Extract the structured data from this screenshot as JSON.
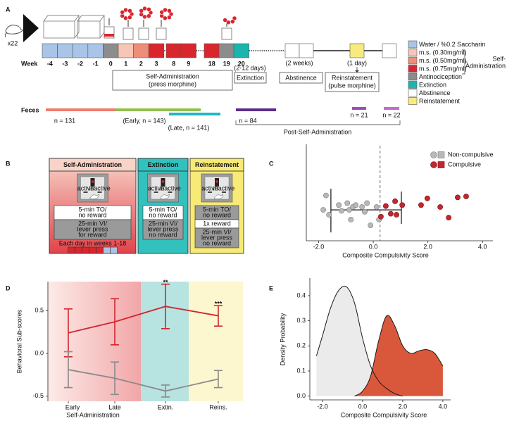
{
  "panel_a": {
    "label": "A",
    "subjects": "x22",
    "week_label": "Week",
    "legend": [
      {
        "label": "Water / %0.2 Saccharin",
        "color": "#a9c4e6"
      },
      {
        "label": "m.s. (0.30mg/ml)",
        "color": "#f6c6b6"
      },
      {
        "label": "m.s. (0.50mg/ml)",
        "color": "#ee8d7a"
      },
      {
        "label": "m.s. (0.75mg/ml)",
        "color": "#d9262e"
      },
      {
        "label": "Antinociception",
        "color": "#8c8c8c"
      },
      {
        "label": "Extinction",
        "color": "#1db4ae"
      },
      {
        "label": "Abstinence",
        "color": "#ffffff"
      },
      {
        "label": "Reinstatement",
        "color": "#f7eb80"
      }
    ],
    "legend_group": [
      "Self-",
      "Administration"
    ],
    "weeks": [
      {
        "label": "-4",
        "legend": 0
      },
      {
        "label": "-3",
        "legend": 0
      },
      {
        "label": "-2",
        "legend": 0
      },
      {
        "label": "-1",
        "legend": 0
      },
      {
        "label": "0",
        "legend": 4
      },
      {
        "label": "1",
        "legend": 1
      },
      {
        "label": "2",
        "legend": 2
      },
      {
        "label": "3",
        "legend": 3
      },
      {
        "label": "8",
        "legend": 3
      },
      {
        "label": "9",
        "legend": 3
      },
      {
        "label": "18",
        "legend": 3
      },
      {
        "label": "19",
        "legend": 4
      },
      {
        "label": "20",
        "legend": 5
      }
    ],
    "self_admin": [
      "Self-Administration",
      "(press morphine)"
    ],
    "extinction_duration": "(2-12 days)",
    "extinction": "Extinction",
    "abstinence_duration": "(2 weeks)",
    "abstinence": "Abstinence",
    "reinstatement_duration": "(1 day)",
    "reinstatement": [
      "Reinstatement",
      "(pulse morphine)"
    ],
    "feces": {
      "label": "Feces",
      "groups": [
        {
          "label": "n = 131",
          "color": "#f07b6b"
        },
        {
          "label": "(Early, n = 143)",
          "color": "#8dc04a"
        },
        {
          "label": "(Late, n = 141)",
          "color": "#22b7c4"
        },
        {
          "label": "n = 84",
          "color": "#5b2b8a"
        },
        {
          "label": "n = 21",
          "color": "#9b4fb8"
        },
        {
          "label": "n = 22",
          "color": "#c46bd0"
        }
      ],
      "post": "Post-Self-Administration"
    }
  },
  "panel_b": {
    "label": "B",
    "active": "active",
    "inactive": "inactive",
    "columns": [
      {
        "title": "Self-Administration",
        "colors": [
          "#f8d3c8",
          "#e0434a"
        ],
        "steps": [
          {
            "lines": [
              "5-min TO/",
              "no reward"
            ],
            "fill": "#ffffff"
          },
          {
            "lines": [
              "25-min VI/",
              "lever press",
              "for reward"
            ],
            "fill": "#9a9a9a"
          }
        ],
        "note": "Each day in weeks 1-18",
        "days": [
          3,
          3,
          3,
          3,
          3,
          0,
          0
        ]
      },
      {
        "title": "Extinction",
        "colors": [
          "#33c1bd"
        ],
        "steps": [
          {
            "lines": [
              "5-min TO/",
              "no reward"
            ],
            "fill": "#ffffff"
          },
          {
            "lines": [
              "25-min VI/",
              "lever press",
              "no reward"
            ],
            "fill": "#9a9a9a"
          }
        ]
      },
      {
        "title": "Reinstatement",
        "colors": [
          "#f7ea76"
        ],
        "steps": [
          {
            "lines": [
              "5-min TO/",
              "no reward"
            ],
            "fill": "#9a9a9a"
          },
          {
            "lines": [
              "1x reward"
            ],
            "fill": "#ffffff"
          },
          {
            "lines": [
              "25-min VI/",
              "lever press",
              "no reward"
            ],
            "fill": "#9a9a9a"
          }
        ]
      }
    ]
  },
  "chart_data": [
    {
      "type": "scatter",
      "panel": "C",
      "x_label": "Composite Compulsivity Score",
      "xlim": [
        -2.45,
        4.38
      ],
      "ylim": [
        0,
        1
      ],
      "xticks": [
        {
          "value": -2,
          "label": "-2.0"
        },
        {
          "value": 0,
          "label": "0.0"
        },
        {
          "value": 2,
          "label": "2.0"
        },
        {
          "value": 4,
          "label": "4.0"
        }
      ],
      "threshold": 0.25,
      "summary_bar": {
        "x": [
          -1.55,
          1.03
        ],
        "y": 0.32
      },
      "series": [
        {
          "name": "Non-compulsive",
          "color": "#b8b8b8",
          "edge": "#7a7a7a",
          "x": [
            -1.73,
            -1.83,
            -1.62,
            -1.26,
            -1.16,
            -0.95,
            -0.88,
            -0.75,
            -0.64,
            -0.41,
            -0.31,
            -0.23,
            -0.1,
            -0.82,
            0.21,
            0.12
          ],
          "y": [
            0.47,
            0.32,
            0.27,
            0.37,
            0.31,
            0.39,
            0.32,
            0.35,
            0.37,
            0.35,
            0.3,
            0.39,
            0.16,
            0.22,
            0.22,
            0.35
          ]
        },
        {
          "name": "Compulsive",
          "color": "#c4262e",
          "edge": "#6e0e12",
          "x": [
            0.28,
            0.46,
            0.64,
            0.85,
            0.8,
            1.06,
            1.75,
            1.98,
            2.45,
            3.09,
            3.4,
            2.76
          ],
          "y": [
            0.25,
            0.36,
            0.28,
            0.27,
            0.41,
            0.37,
            0.37,
            0.44,
            0.35,
            0.45,
            0.46,
            0.24
          ]
        }
      ]
    },
    {
      "type": "line",
      "panel": "D",
      "y_label": "Behavioral Sub-scores",
      "categories": [
        "Early",
        "Late",
        "Extin.",
        "Reins."
      ],
      "group_label": "Self-Administration",
      "ylim": [
        -0.56,
        0.84
      ],
      "yticks": [
        -0.5,
        {
          "value": 0,
          "label": "0.0"
        },
        0.5
      ],
      "series": [
        {
          "color": "#d1262f",
          "values": [
            0.24,
            0.37,
            0.55,
            0.44
          ],
          "errors": [
            0.28,
            0.27,
            0.26,
            0.12
          ]
        },
        {
          "color": "#8a8a8a",
          "values": [
            -0.19,
            -0.29,
            -0.44,
            -0.3
          ],
          "errors": [
            0.21,
            0.19,
            0.07,
            0.1
          ]
        }
      ],
      "annotations": [
        {
          "text": "**",
          "category": 2,
          "series": 0
        },
        {
          "text": "***",
          "category": 3,
          "series": 0
        }
      ]
    },
    {
      "type": "area",
      "panel": "E",
      "x_label": "Composite Compulsivity Score",
      "y_label": "Density Probability",
      "xlim": [
        -2.63,
        4.39
      ],
      "ylim": [
        -0.015,
        0.47
      ],
      "xticks": [
        {
          "value": -2,
          "label": "-2.0"
        },
        {
          "value": 0,
          "label": "0.0"
        },
        {
          "value": 2,
          "label": "2.0"
        },
        {
          "value": 4,
          "label": "4.0"
        }
      ],
      "yticks": [
        {
          "value": 0,
          "label": "0.0"
        },
        0.1,
        0.2,
        0.3,
        0.4
      ],
      "x": [
        -2.3,
        -2.0,
        -1.6,
        -1.2,
        -0.8,
        -0.4,
        0.0,
        0.4,
        0.8,
        1.2,
        1.6,
        2.0,
        2.4,
        2.8,
        3.2,
        3.6,
        4.0
      ],
      "series": [
        {
          "color": "#ebebeb",
          "values": [
            0.16,
            0.24,
            0.35,
            0.42,
            0.435,
            0.37,
            0.23,
            0.12,
            0.06,
            0.03,
            0.01,
            0.0,
            null,
            null,
            null,
            null,
            null
          ]
        },
        {
          "color": "#d9583c",
          "values": [
            null,
            null,
            null,
            null,
            null,
            0.0,
            0.02,
            0.08,
            0.22,
            0.32,
            0.28,
            0.2,
            0.17,
            0.18,
            0.185,
            0.17,
            0.12
          ]
        }
      ]
    }
  ]
}
